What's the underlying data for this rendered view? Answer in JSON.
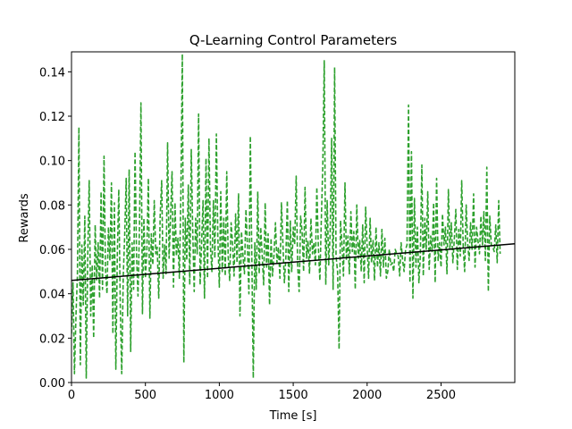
{
  "chart_data": {
    "type": "line",
    "title": "Q-Learning Control Parameters",
    "xlabel": "Time [s]",
    "ylabel": "Rewards",
    "xlim": [
      0,
      2999
    ],
    "ylim": [
      0.0,
      0.149
    ],
    "xticks": [
      0,
      500,
      1000,
      1500,
      2000,
      2500
    ],
    "xtick_labels": [
      "0",
      "500",
      "1000",
      "1500",
      "2000",
      "2500"
    ],
    "yticks": [
      0.0,
      0.02,
      0.04,
      0.06,
      0.08,
      0.1,
      0.12,
      0.14
    ],
    "ytick_labels": [
      "0.00",
      "0.02",
      "0.04",
      "0.06",
      "0.08",
      "0.10",
      "0.12",
      "0.14"
    ],
    "grid": false,
    "legend": "none",
    "series": [
      {
        "style": "dashed",
        "color": "#2ca02c",
        "x_step": 10,
        "values": [
          0.022,
          0.045,
          0.004,
          0.03,
          0.048,
          0.115,
          0.008,
          0.062,
          0.035,
          0.075,
          0.002,
          0.058,
          0.091,
          0.03,
          0.053,
          0.02,
          0.071,
          0.046,
          0.063,
          0.038,
          0.086,
          0.042,
          0.102,
          0.051,
          0.04,
          0.07,
          0.055,
          0.09,
          0.022,
          0.081,
          0.006,
          0.058,
          0.087,
          0.034,
          0.004,
          0.048,
          0.066,
          0.092,
          0.03,
          0.096,
          0.014,
          0.063,
          0.042,
          0.104,
          0.057,
          0.039,
          0.071,
          0.126,
          0.031,
          0.074,
          0.047,
          0.059,
          0.092,
          0.029,
          0.067,
          0.053,
          0.082,
          0.058,
          0.061,
          0.038,
          0.075,
          0.091,
          0.047,
          0.062,
          0.049,
          0.108,
          0.056,
          0.074,
          0.095,
          0.043,
          0.081,
          0.057,
          0.065,
          0.047,
          0.085,
          0.148,
          0.009,
          0.074,
          0.055,
          0.089,
          0.044,
          0.105,
          0.069,
          0.041,
          0.074,
          0.058,
          0.121,
          0.044,
          0.062,
          0.082,
          0.038,
          0.101,
          0.047,
          0.11,
          0.061,
          0.05,
          0.082,
          0.056,
          0.112,
          0.066,
          0.043,
          0.086,
          0.05,
          0.074,
          0.048,
          0.095,
          0.057,
          0.046,
          0.072,
          0.062,
          0.048,
          0.076,
          0.054,
          0.085,
          0.03,
          0.068,
          0.057,
          0.049,
          0.078,
          0.062,
          0.04,
          0.111,
          0.055,
          0.002,
          0.063,
          0.042,
          0.086,
          0.049,
          0.07,
          0.057,
          0.044,
          0.081,
          0.052,
          0.067,
          0.035,
          0.065,
          0.048,
          0.058,
          0.072,
          0.054,
          0.061,
          0.047,
          0.081,
          0.063,
          0.045,
          0.056,
          0.082,
          0.041,
          0.073,
          0.05,
          0.07,
          0.062,
          0.093,
          0.053,
          0.041,
          0.075,
          0.068,
          0.05,
          0.088,
          0.056,
          0.064,
          0.049,
          0.074,
          0.058,
          0.063,
          0.053,
          0.088,
          0.061,
          0.046,
          0.073,
          0.098,
          0.145,
          0.044,
          0.082,
          0.053,
          0.067,
          0.11,
          0.042,
          0.142,
          0.057,
          0.05,
          0.015,
          0.073,
          0.062,
          0.048,
          0.09,
          0.055,
          0.066,
          0.049,
          0.077,
          0.059,
          0.068,
          0.042,
          0.08,
          0.056,
          0.064,
          0.05,
          0.071,
          0.045,
          0.079,
          0.061,
          0.047,
          0.074,
          0.054,
          0.064,
          0.046,
          0.07,
          0.052,
          0.063,
          0.048,
          0.069,
          0.052,
          0.065,
          0.047,
          0.05,
          0.06,
          0.053,
          0.054,
          0.05,
          0.06,
          0.058,
          0.057,
          0.048,
          0.063,
          0.055,
          0.05,
          0.06,
          0.062,
          0.125,
          0.045,
          0.104,
          0.038,
          0.083,
          0.052,
          0.07,
          0.045,
          0.057,
          0.098,
          0.048,
          0.074,
          0.06,
          0.086,
          0.051,
          0.066,
          0.059,
          0.081,
          0.045,
          0.092,
          0.055,
          0.063,
          0.052,
          0.076,
          0.062,
          0.07,
          0.049,
          0.087,
          0.06,
          0.072,
          0.054,
          0.065,
          0.078,
          0.051,
          0.069,
          0.057,
          0.091,
          0.061,
          0.05,
          0.08,
          0.063,
          0.055,
          0.072,
          0.06,
          0.085,
          0.052,
          0.07,
          0.064,
          0.058,
          0.075,
          0.062,
          0.077,
          0.055,
          0.097,
          0.041,
          0.075,
          0.062,
          0.061,
          0.059,
          0.071,
          0.054,
          0.082,
          0.058
        ]
      },
      {
        "style": "solid",
        "color": "#000000",
        "x": [
          0,
          2999
        ],
        "values": [
          0.046,
          0.0625
        ]
      }
    ]
  }
}
